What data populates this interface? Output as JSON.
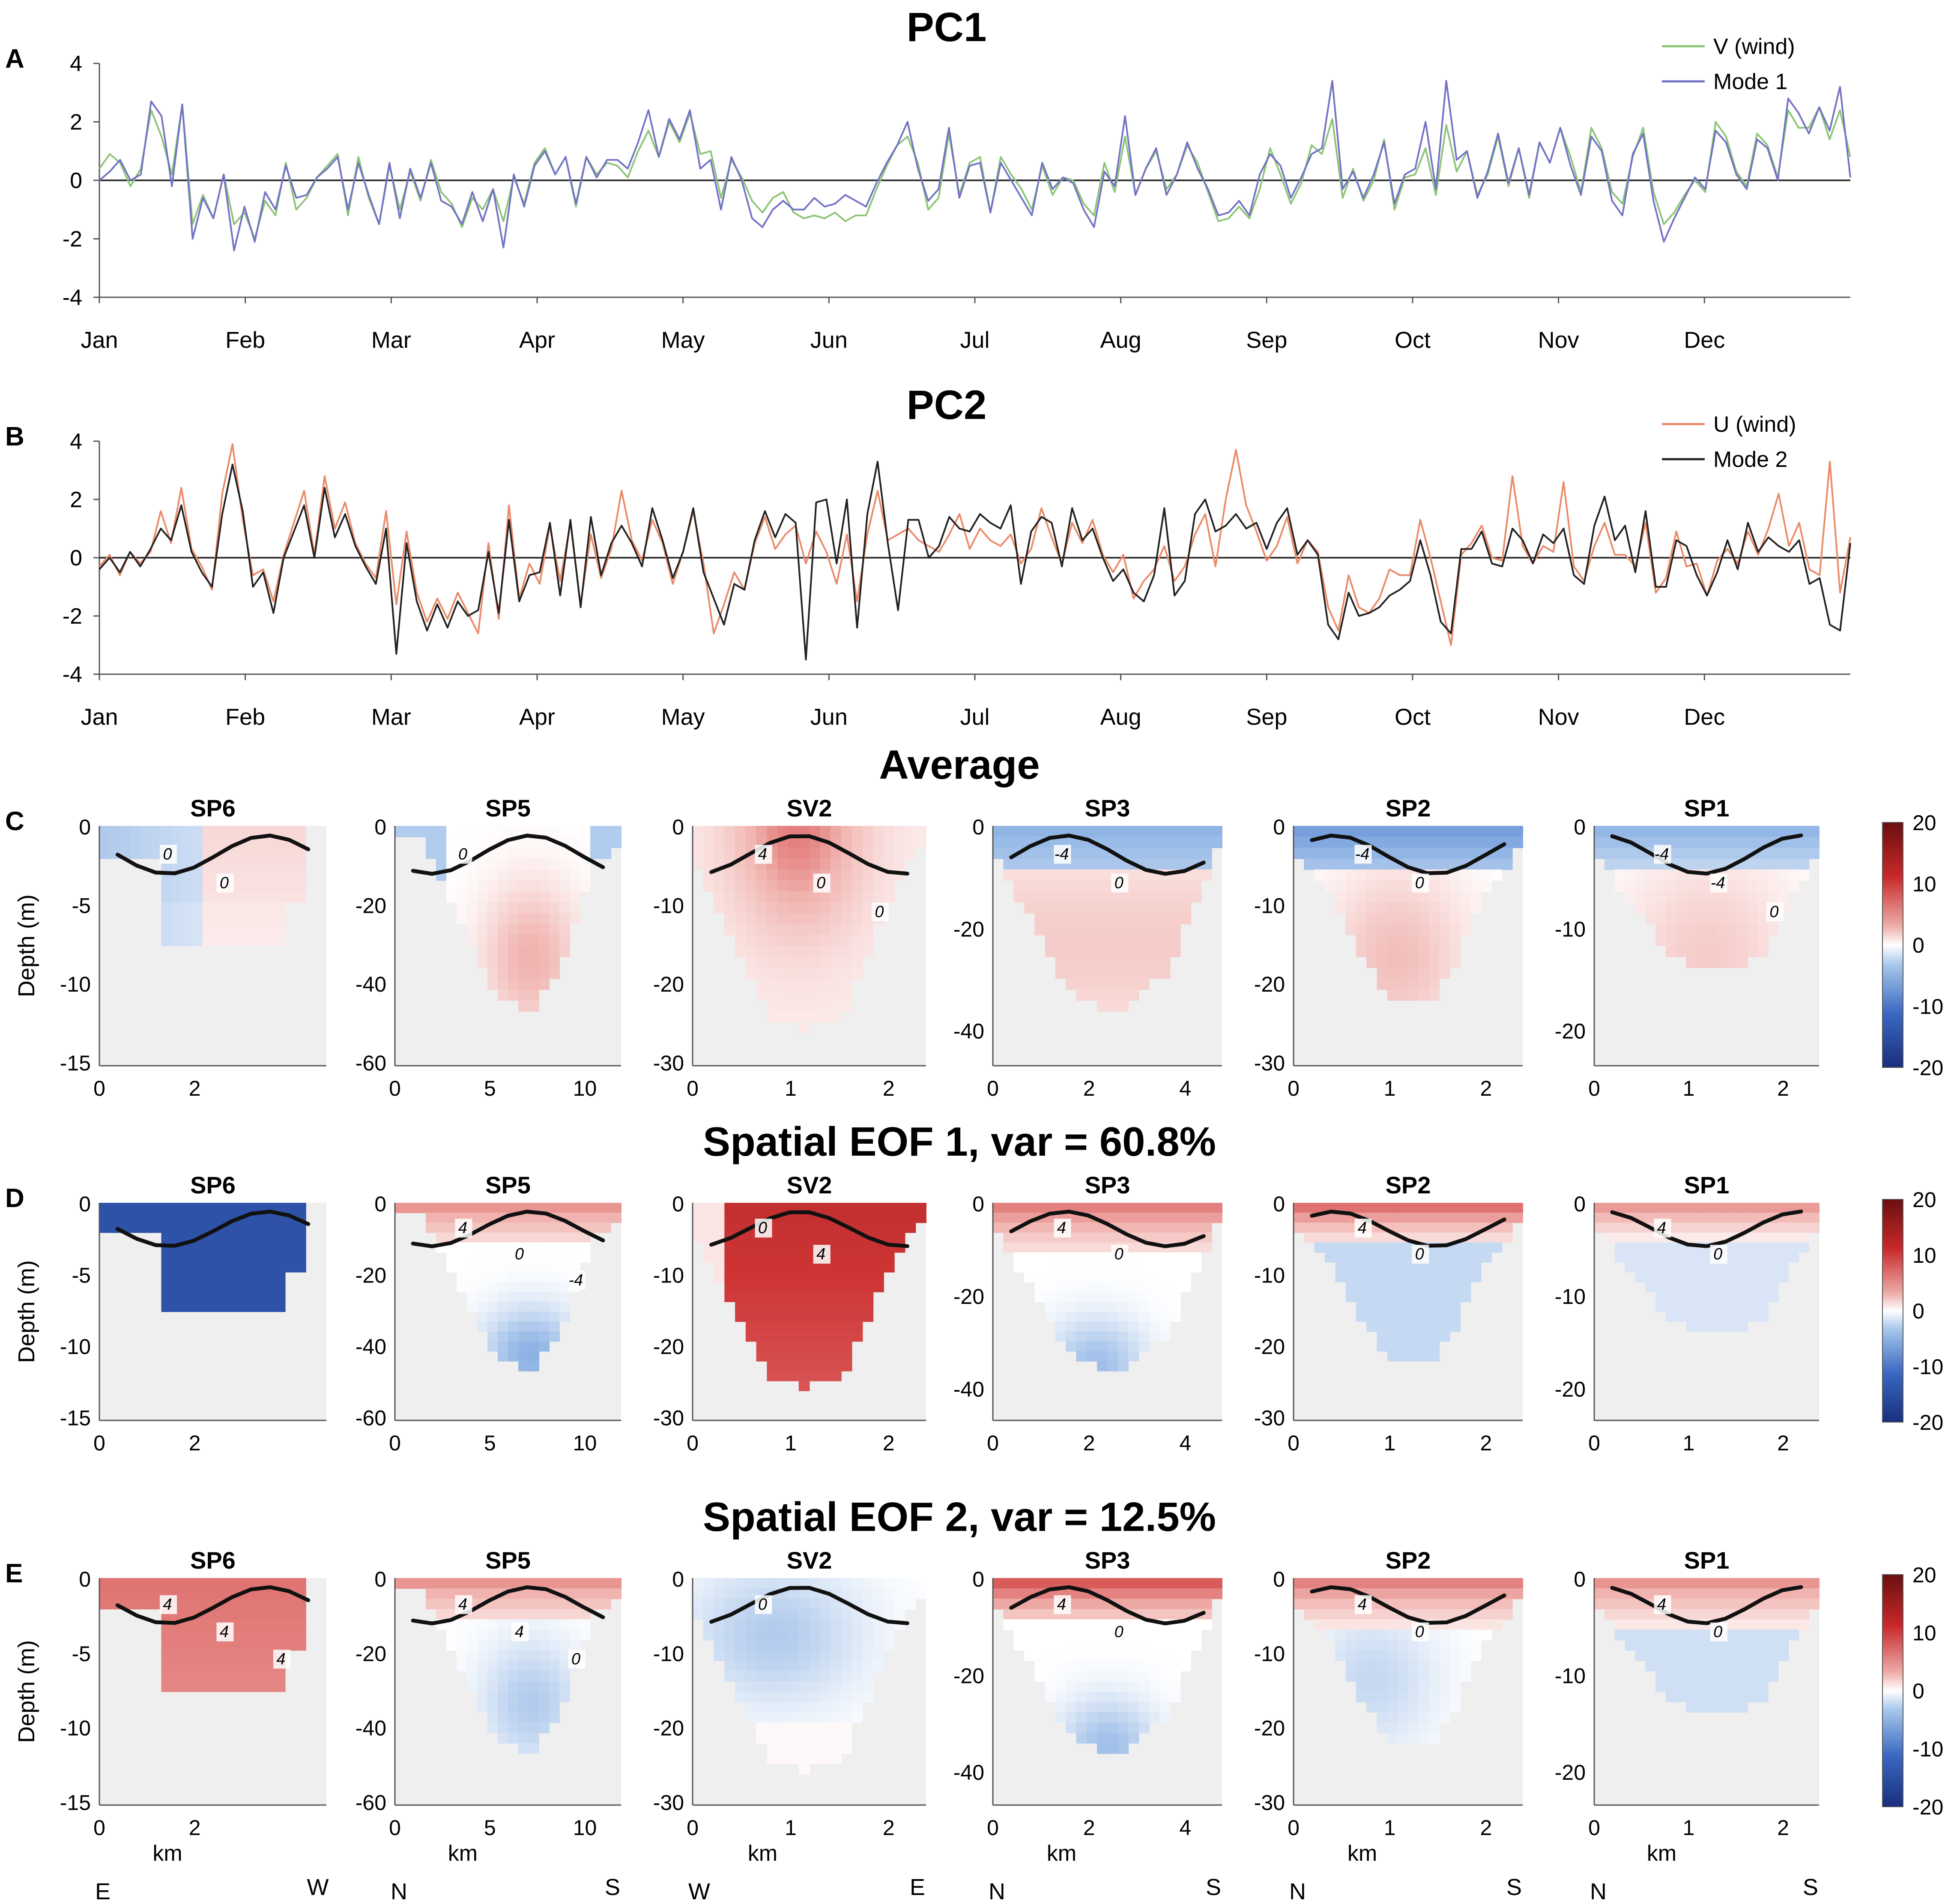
{
  "chart_data": {
    "type": "figure",
    "month_labels": [
      "Jan",
      "Feb",
      "Mar",
      "Apr",
      "May",
      "Jun",
      "Jul",
      "Aug",
      "Sep",
      "Oct",
      "Nov",
      "Dec"
    ],
    "panel_a": {
      "letter": "A",
      "title": "PC1",
      "type": "line",
      "ylim": [
        -4,
        4
      ],
      "yticks": [
        4,
        2,
        0,
        -2,
        -4
      ],
      "series": [
        {
          "name": "V (wind)",
          "color": "#8cc476",
          "values": [
            0.4,
            0.9,
            0.6,
            -0.2,
            0.4,
            2.4,
            1.5,
            0.2,
            2.6,
            -1.5,
            -0.5,
            -1.3,
            0.2,
            -1.5,
            -1.1,
            -2.0,
            -0.7,
            -1.2,
            0.6,
            -1.0,
            -0.6,
            0.1,
            0.5,
            0.9,
            -1.2,
            0.8,
            -0.6,
            -1.5,
            0.5,
            -1.0,
            0.3,
            -0.7,
            0.7,
            -0.4,
            -0.8,
            -1.6,
            -0.6,
            -1.0,
            -0.3,
            -1.4,
            0.1,
            -0.8,
            0.6,
            1.1,
            0.2,
            0.8,
            -0.9,
            0.8,
            0.2,
            0.6,
            0.5,
            0.1,
            1.0,
            1.7,
            0.8,
            2.0,
            1.3,
            2.3,
            0.9,
            1.0,
            -0.6,
            0.7,
            0.1,
            -0.7,
            -1.1,
            -0.6,
            -0.4,
            -1.1,
            -1.3,
            -1.2,
            -1.3,
            -1.1,
            -1.4,
            -1.2,
            -1.2,
            -0.3,
            0.5,
            1.2,
            1.5,
            0.6,
            -1.0,
            -0.6,
            1.6,
            -0.5,
            0.6,
            0.8,
            -1.1,
            0.8,
            0.2,
            -0.3,
            -1.0,
            0.5,
            -0.5,
            0.1,
            0.0,
            -0.8,
            -1.2,
            0.6,
            -0.4,
            1.5,
            -0.5,
            0.4,
            1.0,
            -0.3,
            0.2,
            1.2,
            0.6,
            -0.4,
            -1.4,
            -1.3,
            -0.9,
            -1.3,
            -0.3,
            1.1,
            0.2,
            -0.8,
            -0.1,
            1.2,
            0.9,
            2.1,
            -0.6,
            0.4,
            -0.7,
            0.0,
            1.4,
            -1.0,
            0.1,
            0.2,
            1.1,
            -0.5,
            1.9,
            0.3,
            1.0,
            -0.5,
            0.2,
            1.5,
            -0.2,
            1.1,
            -0.6,
            1.3,
            0.6,
            1.8,
            0.8,
            -0.4,
            1.8,
            1.1,
            -0.4,
            -0.8,
            0.8,
            1.8,
            -0.4,
            -1.5,
            -1.1,
            -0.5,
            0.0,
            -0.4,
            2.0,
            1.5,
            0.3,
            -0.2,
            1.6,
            1.2,
            0.1,
            2.4,
            1.8,
            1.8,
            2.5,
            1.4,
            2.4,
            0.8
          ]
        },
        {
          "name": "Mode 1",
          "color": "#7373c6",
          "values": [
            0.0,
            0.3,
            0.7,
            0.0,
            0.2,
            2.7,
            2.2,
            -0.2,
            2.6,
            -2.0,
            -0.6,
            -1.3,
            0.2,
            -2.4,
            -0.9,
            -2.1,
            -0.4,
            -1.0,
            0.5,
            -0.6,
            -0.5,
            0.1,
            0.4,
            0.8,
            -1.0,
            0.6,
            -0.5,
            -1.5,
            0.6,
            -1.3,
            0.4,
            -0.6,
            0.6,
            -0.7,
            -0.9,
            -1.5,
            -0.4,
            -1.4,
            -0.3,
            -2.3,
            0.2,
            -0.9,
            0.5,
            1.0,
            0.2,
            0.8,
            -0.8,
            0.8,
            0.1,
            0.7,
            0.7,
            0.4,
            1.3,
            2.4,
            0.8,
            2.1,
            1.4,
            2.4,
            0.4,
            0.7,
            -1.0,
            0.8,
            0.0,
            -1.3,
            -1.6,
            -1.0,
            -0.7,
            -1.0,
            -1.0,
            -0.6,
            -0.9,
            -0.8,
            -0.5,
            -0.7,
            -0.9,
            -0.1,
            0.6,
            1.2,
            2.0,
            0.4,
            -0.7,
            -0.3,
            1.8,
            -0.6,
            0.5,
            0.6,
            -1.1,
            0.6,
            0.0,
            -0.6,
            -1.2,
            0.6,
            -0.3,
            0.1,
            -0.1,
            -1.0,
            -1.6,
            0.3,
            -0.2,
            2.2,
            -0.5,
            0.4,
            1.1,
            -0.5,
            0.2,
            1.3,
            0.4,
            -0.3,
            -1.2,
            -1.1,
            -0.7,
            -1.2,
            0.2,
            0.9,
            0.5,
            -0.6,
            0.1,
            0.9,
            1.1,
            3.4,
            -0.3,
            0.3,
            -0.6,
            0.2,
            1.3,
            -0.8,
            0.2,
            0.4,
            2.0,
            -0.3,
            3.4,
            0.7,
            1.0,
            -0.6,
            0.3,
            1.6,
            -0.1,
            1.1,
            -0.5,
            1.3,
            0.6,
            1.8,
            0.5,
            -0.5,
            1.5,
            1.0,
            -0.7,
            -1.2,
            0.9,
            1.6,
            -0.7,
            -2.1,
            -1.3,
            -0.6,
            0.1,
            -0.3,
            1.7,
            1.3,
            0.2,
            -0.3,
            1.4,
            1.1,
            0.0,
            2.8,
            2.3,
            1.6,
            2.5,
            1.7,
            3.2,
            0.1
          ]
        }
      ]
    },
    "panel_b": {
      "letter": "B",
      "title": "PC2",
      "type": "line",
      "ylim": [
        -4,
        4
      ],
      "yticks": [
        4,
        2,
        0,
        -2,
        -4
      ],
      "series": [
        {
          "name": "U (wind)",
          "color": "#eb8a68",
          "values": [
            -0.3,
            0.1,
            -0.6,
            0.2,
            -0.2,
            0.2,
            1.6,
            0.5,
            2.4,
            0.3,
            -0.3,
            -1.1,
            2.2,
            3.9,
            1.3,
            -0.6,
            -0.4,
            -1.5,
            0.1,
            1.2,
            2.3,
            0.1,
            2.8,
            1.0,
            1.9,
            0.5,
            -0.2,
            -0.7,
            1.6,
            -1.6,
            0.9,
            -1.2,
            -2.2,
            -1.4,
            -2.1,
            -1.2,
            -1.9,
            -2.6,
            0.5,
            -2.1,
            1.8,
            -1.4,
            -0.2,
            -0.9,
            1.1,
            -0.8,
            1.2,
            -1.6,
            0.8,
            -0.7,
            0.3,
            2.3,
            0.6,
            -0.1,
            1.3,
            0.5,
            -0.9,
            0.2,
            1.6,
            -0.2,
            -2.6,
            -1.6,
            -0.5,
            -1.1,
            0.5,
            1.4,
            0.3,
            0.8,
            1.1,
            -0.2,
            0.9,
            0.2,
            -0.9,
            0.8,
            -1.5,
            0.8,
            2.3,
            0.6,
            0.8,
            1.0,
            0.6,
            0.4,
            0.2,
            0.8,
            1.5,
            0.3,
            1.0,
            0.6,
            0.4,
            0.8,
            -0.2,
            0.3,
            1.7,
            0.7,
            -0.2,
            1.2,
            0.5,
            1.3,
            0.1,
            -0.5,
            0.1,
            -1.4,
            -0.8,
            -0.4,
            0.4,
            -0.8,
            -0.3,
            0.8,
            1.5,
            -0.3,
            2.0,
            3.7,
            1.8,
            0.9,
            -0.1,
            0.4,
            1.4,
            -0.2,
            0.6,
            0.2,
            -1.7,
            -2.5,
            -0.6,
            -1.7,
            -1.9,
            -1.4,
            -0.4,
            -0.6,
            -0.6,
            1.3,
            0.0,
            -1.5,
            -3.0,
            0.1,
            0.5,
            1.1,
            0.0,
            -0.1,
            2.8,
            0.4,
            -0.2,
            0.4,
            0.2,
            2.6,
            -0.3,
            -0.8,
            0.4,
            1.2,
            0.1,
            0.1,
            -0.3,
            1.2,
            -1.2,
            -0.7,
            0.9,
            -0.3,
            -0.2,
            -1.3,
            -0.1,
            0.3,
            -0.2,
            0.9,
            0.1,
            1.0,
            2.2,
            0.4,
            1.2,
            -0.4,
            -0.6,
            3.3,
            -1.2,
            0.7
          ]
        },
        {
          "name": "Mode 2",
          "color": "#222222",
          "values": [
            -0.4,
            0.0,
            -0.5,
            0.2,
            -0.3,
            0.3,
            1.0,
            0.6,
            1.8,
            0.2,
            -0.5,
            -1.0,
            1.5,
            3.2,
            1.6,
            -1.0,
            -0.5,
            -1.9,
            0.0,
            0.9,
            1.8,
            0.0,
            2.4,
            0.7,
            1.5,
            0.4,
            -0.3,
            -0.9,
            1.0,
            -3.3,
            0.5,
            -1.5,
            -2.5,
            -1.6,
            -2.4,
            -1.5,
            -2.0,
            -1.8,
            0.2,
            -1.9,
            1.3,
            -1.5,
            -0.6,
            -0.5,
            1.2,
            -1.3,
            1.3,
            -1.7,
            1.4,
            -0.6,
            0.5,
            1.1,
            0.5,
            -0.3,
            1.7,
            0.6,
            -0.7,
            0.2,
            1.7,
            -0.5,
            -1.4,
            -2.3,
            -0.9,
            -1.1,
            0.6,
            1.6,
            0.7,
            1.5,
            1.2,
            -3.5,
            1.9,
            2.0,
            -0.2,
            2.0,
            -2.4,
            1.5,
            3.3,
            0.5,
            -1.8,
            1.3,
            1.3,
            0.0,
            0.4,
            1.4,
            1.0,
            0.9,
            1.5,
            1.2,
            1.0,
            1.8,
            -0.9,
            0.9,
            1.4,
            1.2,
            -0.3,
            1.7,
            0.6,
            1.0,
            0.0,
            -0.8,
            -0.4,
            -1.2,
            -1.5,
            -0.6,
            1.7,
            -1.3,
            -0.8,
            1.5,
            2.0,
            0.9,
            1.1,
            1.5,
            1.0,
            1.2,
            0.3,
            1.2,
            1.7,
            0.1,
            0.6,
            0.1,
            -2.3,
            -2.8,
            -1.2,
            -2.0,
            -1.9,
            -1.7,
            -1.3,
            -1.1,
            -0.8,
            0.6,
            -0.6,
            -2.2,
            -2.6,
            0.3,
            0.3,
            0.9,
            -0.2,
            -0.3,
            1.0,
            0.6,
            -0.2,
            0.8,
            0.5,
            1.0,
            -0.6,
            -0.9,
            1.1,
            2.1,
            0.6,
            1.1,
            -0.5,
            1.6,
            -1.0,
            -1.0,
            0.6,
            0.4,
            -0.6,
            -1.3,
            -0.5,
            0.6,
            -0.4,
            1.2,
            0.2,
            0.7,
            0.4,
            0.2,
            0.6,
            -0.9,
            -0.7,
            -2.3,
            -2.5,
            0.5
          ]
        }
      ]
    },
    "colorbar": {
      "ticks": [
        20,
        10,
        0,
        -10,
        -20
      ]
    },
    "row_c": {
      "letter": "C",
      "title": "Average",
      "panels": [
        {
          "name": "SP6",
          "ylabel": "Depth (m)",
          "xticks": [
            "0",
            "2"
          ],
          "yticks": [
            "0",
            "-5",
            "-10",
            "-15"
          ],
          "contour_labels": [
            "0",
            "0"
          ]
        },
        {
          "name": "SP5",
          "xticks": [
            "0",
            "5",
            "10"
          ],
          "yticks": [
            "0",
            "-20",
            "-40",
            "-60"
          ],
          "contour_labels": [
            "0"
          ]
        },
        {
          "name": "SV2",
          "xticks": [
            "0",
            "1",
            "2"
          ],
          "yticks": [
            "0",
            "-10",
            "-20",
            "-30"
          ],
          "contour_labels": [
            "4",
            "0",
            "0"
          ]
        },
        {
          "name": "SP3",
          "xticks": [
            "0",
            "2",
            "4"
          ],
          "yticks": [
            "0",
            "-20",
            "-40"
          ],
          "contour_labels": [
            "-4",
            "0"
          ]
        },
        {
          "name": "SP2",
          "xticks": [
            "0",
            "1",
            "2"
          ],
          "yticks": [
            "0",
            "-10",
            "-20",
            "-30"
          ],
          "contour_labels": [
            "-4",
            "0"
          ]
        },
        {
          "name": "SP1",
          "xticks": [
            "0",
            "1",
            "2"
          ],
          "yticks": [
            "0",
            "-10",
            "-20"
          ],
          "contour_labels": [
            "-4",
            "-4",
            "0"
          ]
        }
      ]
    },
    "row_d": {
      "letter": "D",
      "title": "Spatial EOF 1, var = 60.8%",
      "panels": [
        {
          "name": "SP6",
          "ylabel": "Depth (m)",
          "xticks": [
            "0",
            "2"
          ],
          "yticks": [
            "0",
            "-5",
            "-10",
            "-15"
          ],
          "contour_labels": []
        },
        {
          "name": "SP5",
          "xticks": [
            "0",
            "5",
            "10"
          ],
          "yticks": [
            "0",
            "-20",
            "-40",
            "-60"
          ],
          "contour_labels": [
            "4",
            "0",
            "-4"
          ]
        },
        {
          "name": "SV2",
          "xticks": [
            "0",
            "1",
            "2"
          ],
          "yticks": [
            "0",
            "-10",
            "-20",
            "-30"
          ],
          "contour_labels": [
            "0",
            "4"
          ]
        },
        {
          "name": "SP3",
          "xticks": [
            "0",
            "2",
            "4"
          ],
          "yticks": [
            "0",
            "-20",
            "-40"
          ],
          "contour_labels": [
            "4",
            "0"
          ]
        },
        {
          "name": "SP2",
          "xticks": [
            "0",
            "1",
            "2"
          ],
          "yticks": [
            "0",
            "-10",
            "-20",
            "-30"
          ],
          "contour_labels": [
            "4",
            "0"
          ]
        },
        {
          "name": "SP1",
          "xticks": [
            "0",
            "1",
            "2"
          ],
          "yticks": [
            "0",
            "-10",
            "-20"
          ],
          "contour_labels": [
            "4",
            "0"
          ]
        }
      ]
    },
    "row_e": {
      "letter": "E",
      "title": "Spatial EOF 2, var = 12.5%",
      "xlabel": "km",
      "panels": [
        {
          "name": "SP6",
          "ylabel": "Depth (m)",
          "xticks": [
            "0",
            "2"
          ],
          "yticks": [
            "0",
            "-5",
            "-10",
            "-15"
          ],
          "contour_labels": [
            "4",
            "4",
            "4"
          ],
          "dir_left": "E",
          "dir_right": "W"
        },
        {
          "name": "SP5",
          "xticks": [
            "0",
            "5",
            "10"
          ],
          "yticks": [
            "0",
            "-20",
            "-40",
            "-60"
          ],
          "contour_labels": [
            "4",
            "4",
            "0"
          ],
          "dir_left": "N",
          "dir_right": "S"
        },
        {
          "name": "SV2",
          "xticks": [
            "0",
            "1",
            "2"
          ],
          "yticks": [
            "0",
            "-10",
            "-20",
            "-30"
          ],
          "contour_labels": [
            "0"
          ],
          "dir_left": "W",
          "dir_right": "E"
        },
        {
          "name": "SP3",
          "xticks": [
            "0",
            "2",
            "4"
          ],
          "yticks": [
            "0",
            "-20",
            "-40"
          ],
          "contour_labels": [
            "4",
            "0"
          ],
          "dir_left": "N",
          "dir_right": "S"
        },
        {
          "name": "SP2",
          "xticks": [
            "0",
            "1",
            "2"
          ],
          "yticks": [
            "0",
            "-10",
            "-20",
            "-30"
          ],
          "contour_labels": [
            "4",
            "0"
          ],
          "dir_left": "N",
          "dir_right": "S"
        },
        {
          "name": "SP1",
          "xticks": [
            "0",
            "1",
            "2"
          ],
          "yticks": [
            "0",
            "-10",
            "-20"
          ],
          "contour_labels": [
            "4",
            "0"
          ],
          "dir_left": "N",
          "dir_right": "S"
        }
      ]
    }
  }
}
